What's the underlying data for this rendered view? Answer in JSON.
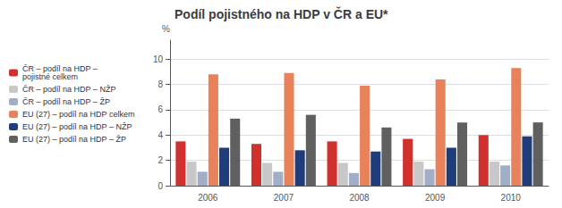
{
  "chart_data": {
    "type": "bar",
    "title": "Podíl pojistného na HDP v ČR a EU*",
    "categories": [
      "2006",
      "2007",
      "2008",
      "2009",
      "2010"
    ],
    "series": [
      {
        "name": "ČR – podíl na HDP –\npojistné celkem",
        "color": "#d0312d",
        "values": [
          3.5,
          3.3,
          3.5,
          3.7,
          4.0
        ]
      },
      {
        "name": "ČR – podíl na HDP – NŽP",
        "color": "#c8c8c8",
        "values": [
          1.9,
          1.8,
          1.8,
          1.9,
          1.9
        ]
      },
      {
        "name": "ČR – podíl na HDP – ŽP",
        "color": "#a0aec8",
        "values": [
          1.1,
          1.1,
          1.0,
          1.3,
          1.6
        ]
      },
      {
        "name": "EU (27) – podíl na HDP celkem",
        "color": "#e8825a",
        "values": [
          8.8,
          8.9,
          7.9,
          8.4,
          9.3
        ]
      },
      {
        "name": "EU (27) – podíl na HDP – NŽP",
        "color": "#1f3d7a",
        "values": [
          3.0,
          2.8,
          2.7,
          3.0,
          3.9
        ]
      },
      {
        "name": "EU (27) – podíl na HDP – ŽP",
        "color": "#606060",
        "values": [
          5.3,
          5.6,
          4.6,
          5.0,
          5.0
        ]
      }
    ],
    "ylabel": "%",
    "ylim": [
      0,
      11.5
    ],
    "yticks": [
      0,
      2,
      4,
      6,
      8,
      10
    ],
    "grid": true,
    "legend": "left"
  }
}
